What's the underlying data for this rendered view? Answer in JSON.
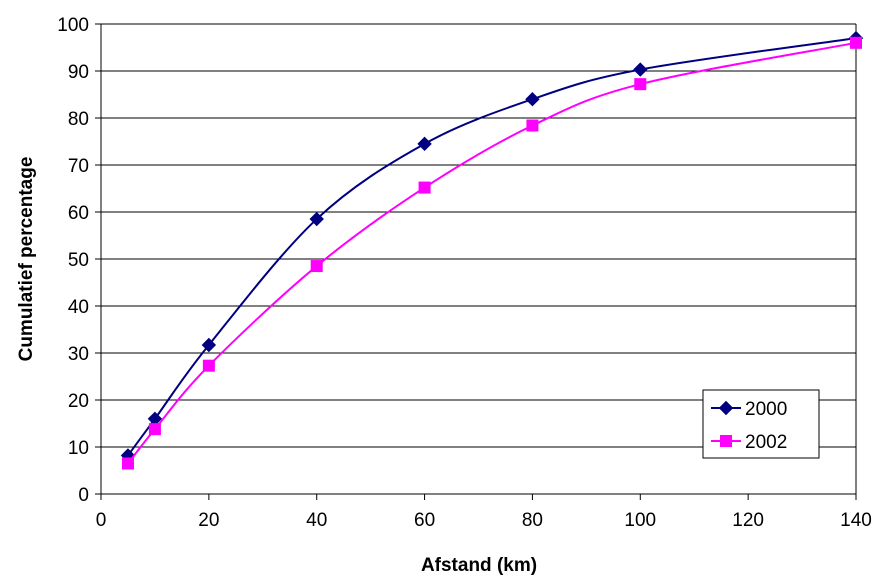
{
  "chart_data": {
    "type": "line",
    "title": "",
    "xlabel": "Afstand (km)",
    "ylabel": "Cumulatief percentage",
    "xlim": [
      0,
      140
    ],
    "ylim": [
      0,
      100
    ],
    "x_ticks": [
      0,
      20,
      40,
      60,
      80,
      100,
      120,
      140
    ],
    "y_ticks": [
      0,
      10,
      20,
      30,
      40,
      50,
      60,
      70,
      80,
      90,
      100
    ],
    "grid": "horizontal",
    "legend_position": "bottom-right",
    "series": [
      {
        "name": "2000",
        "color": "#000080",
        "marker": "diamond",
        "x": [
          5,
          10,
          20,
          40,
          60,
          80,
          100,
          140
        ],
        "y": [
          8.2,
          16,
          31.7,
          58.5,
          74.5,
          84,
          90.3,
          97
        ]
      },
      {
        "name": "2002",
        "color": "#FF00FF",
        "marker": "square",
        "x": [
          5,
          10,
          20,
          40,
          60,
          80,
          100,
          140
        ],
        "y": [
          6.5,
          13.8,
          27.3,
          48.5,
          65.2,
          78.4,
          87.2,
          96
        ]
      }
    ]
  }
}
